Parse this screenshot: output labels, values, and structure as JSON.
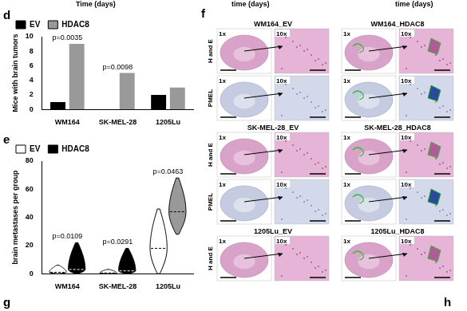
{
  "header_fragments": [
    "Time (days)",
    "time (days)",
    "time (days)"
  ],
  "chart_data": [
    {
      "type": "bar",
      "title": "d",
      "y_label": "Mice with brain tumors",
      "categories": [
        "WM164",
        "SK-MEL-28",
        "1205Lu"
      ],
      "series": [
        {
          "name": "EV",
          "color": "#000000",
          "values": [
            1,
            0,
            2
          ]
        },
        {
          "name": "HDAC8",
          "color": "#999999",
          "values": [
            9,
            5,
            3
          ]
        }
      ],
      "ylim": [
        0,
        10
      ],
      "yticks": [
        0,
        2,
        4,
        6,
        8,
        10
      ],
      "grid": false,
      "legend": "top",
      "annotations": [
        {
          "text": "p=0.0035",
          "category": "WM164"
        },
        {
          "text": "p=0.0098",
          "category": "SK-MEL-28"
        }
      ]
    },
    {
      "type": "violin",
      "title": "e",
      "y_label": "brain metastases per group",
      "categories": [
        "WM164",
        "SK-MEL-28",
        "1205Lu"
      ],
      "series": [
        {
          "name": "EV",
          "color": "#ffffff",
          "values": [
            [
              0,
              6
            ],
            [
              0,
              3
            ],
            [
              0,
              46
            ]
          ],
          "medians": [
            1,
            0.5,
            18
          ]
        },
        {
          "name": "HDAC8",
          "color": "#000000",
          "colors": [
            "#000000",
            "#000000",
            "#999999"
          ],
          "values": [
            [
              0,
              22
            ],
            [
              0,
              18
            ],
            [
              28,
              68
            ]
          ],
          "medians": [
            3,
            2,
            44
          ]
        }
      ],
      "ylim": [
        0,
        80
      ],
      "yticks": [
        0,
        20,
        40,
        60,
        80
      ],
      "grid": false,
      "legend": "top",
      "annotations": [
        {
          "text": "p=0.0109",
          "category": "WM164"
        },
        {
          "text": "p=0.0291",
          "category": "SK-MEL-28"
        },
        {
          "text": "p=0.0463",
          "category": "1205Lu"
        }
      ]
    }
  ],
  "panel_f": {
    "title": "f",
    "magnifications": [
      "1x",
      "10x"
    ],
    "groups": [
      {
        "headers": [
          "WM164_EV",
          "WM164_HDAC8"
        ],
        "rows": [
          "H and E",
          "PMEL"
        ]
      },
      {
        "headers": [
          "SK-MEL-28_EV",
          "SK-MEL-28_HDAC8"
        ],
        "rows": [
          "H and E",
          "PMEL"
        ]
      },
      {
        "headers": [
          "1205Lu_EV",
          "1205Lu_HDAC8"
        ],
        "rows": [
          "H and E"
        ]
      }
    ]
  },
  "footer_letters": [
    "g",
    "h"
  ]
}
